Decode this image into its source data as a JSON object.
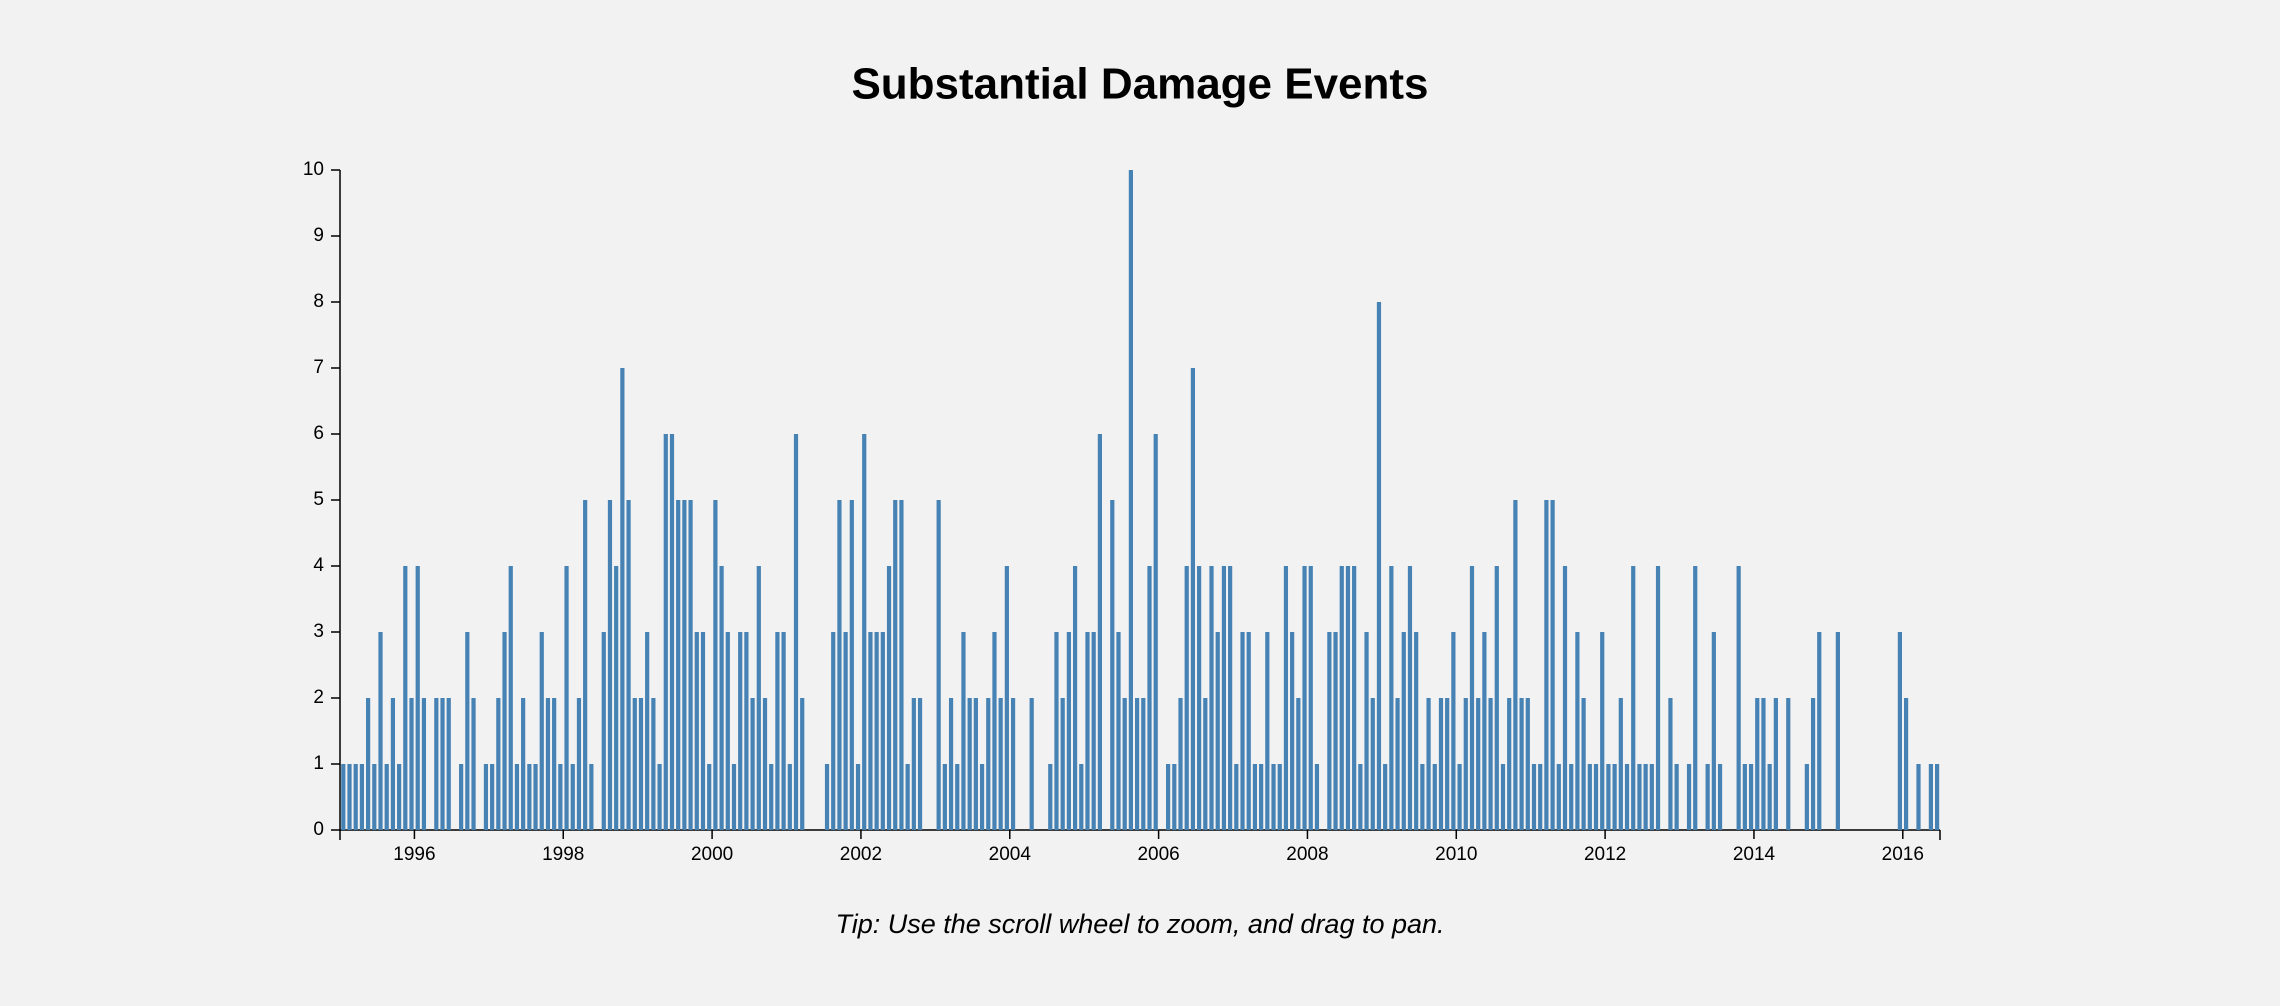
{
  "chart_data": {
    "type": "bar",
    "title": "Substantial Damage Events",
    "note": "Tip: Use the scroll wheel to zoom, and drag to pan.",
    "color": "#4682b4",
    "x": [
      "1995-01",
      "1995-02",
      "1995-03",
      "1995-04",
      "1995-05",
      "1995-06",
      "1995-07",
      "1995-08",
      "1995-09",
      "1995-10",
      "1995-11",
      "1995-12",
      "1996-01",
      "1996-02",
      "1996-03",
      "1996-04",
      "1996-05",
      "1996-06",
      "1996-07",
      "1996-08",
      "1996-09",
      "1996-10",
      "1996-11",
      "1996-12",
      "1997-01",
      "1997-02",
      "1997-03",
      "1997-04",
      "1997-05",
      "1997-06",
      "1997-07",
      "1997-08",
      "1997-09",
      "1997-10",
      "1997-11",
      "1997-12",
      "1998-01",
      "1998-02",
      "1998-03",
      "1998-04",
      "1998-05",
      "1998-06",
      "1998-07",
      "1998-08",
      "1998-09",
      "1998-10",
      "1998-11",
      "1998-12",
      "1999-01",
      "1999-02",
      "1999-03",
      "1999-04",
      "1999-05",
      "1999-06",
      "1999-07",
      "1999-08",
      "1999-09",
      "1999-10",
      "1999-11",
      "1999-12",
      "2000-01",
      "2000-02",
      "2000-03",
      "2000-04",
      "2000-05",
      "2000-06",
      "2000-07",
      "2000-08",
      "2000-09",
      "2000-10",
      "2000-11",
      "2000-12",
      "2001-01",
      "2001-02",
      "2001-03",
      "2001-04",
      "2001-05",
      "2001-06",
      "2001-07",
      "2001-08",
      "2001-09",
      "2001-10",
      "2001-11",
      "2001-12",
      "2002-01",
      "2002-02",
      "2002-03",
      "2002-04",
      "2002-05",
      "2002-06",
      "2002-07",
      "2002-08",
      "2002-09",
      "2002-10",
      "2002-11",
      "2002-12",
      "2003-01",
      "2003-02",
      "2003-03",
      "2003-04",
      "2003-05",
      "2003-06",
      "2003-07",
      "2003-08",
      "2003-09",
      "2003-10",
      "2003-11",
      "2003-12",
      "2004-01",
      "2004-02",
      "2004-03",
      "2004-04",
      "2004-05",
      "2004-06",
      "2004-07",
      "2004-08",
      "2004-09",
      "2004-10",
      "2004-11",
      "2004-12",
      "2005-01",
      "2005-02",
      "2005-03",
      "2005-04",
      "2005-05",
      "2005-06",
      "2005-07",
      "2005-08",
      "2005-09",
      "2005-10",
      "2005-11",
      "2005-12",
      "2006-01",
      "2006-02",
      "2006-03",
      "2006-04",
      "2006-05",
      "2006-06",
      "2006-07",
      "2006-08",
      "2006-09",
      "2006-10",
      "2006-11",
      "2006-12",
      "2007-01",
      "2007-02",
      "2007-03",
      "2007-04",
      "2007-05",
      "2007-06",
      "2007-07",
      "2007-08",
      "2007-09",
      "2007-10",
      "2007-11",
      "2007-12",
      "2008-01",
      "2008-02",
      "2008-03",
      "2008-04",
      "2008-05",
      "2008-06",
      "2008-07",
      "2008-08",
      "2008-09",
      "2008-10",
      "2008-11",
      "2008-12",
      "2009-01",
      "2009-02",
      "2009-03",
      "2009-04",
      "2009-05",
      "2009-06",
      "2009-07",
      "2009-08",
      "2009-09",
      "2009-10",
      "2009-11",
      "2009-12",
      "2010-01",
      "2010-02",
      "2010-03",
      "2010-04",
      "2010-05",
      "2010-06",
      "2010-07",
      "2010-08",
      "2010-09",
      "2010-10",
      "2010-11",
      "2010-12",
      "2011-01",
      "2011-02",
      "2011-03",
      "2011-04",
      "2011-05",
      "2011-06",
      "2011-07",
      "2011-08",
      "2011-09",
      "2011-10",
      "2011-11",
      "2011-12",
      "2012-01",
      "2012-02",
      "2012-03",
      "2012-04",
      "2012-05",
      "2012-06",
      "2012-07",
      "2012-08",
      "2012-09",
      "2012-10",
      "2012-11",
      "2012-12",
      "2013-01",
      "2013-02",
      "2013-03",
      "2013-04",
      "2013-05",
      "2013-06",
      "2013-07",
      "2013-08",
      "2013-09",
      "2013-10",
      "2013-11",
      "2013-12",
      "2014-01",
      "2014-02",
      "2014-03",
      "2014-04",
      "2014-05",
      "2014-06",
      "2014-07",
      "2014-08",
      "2014-09",
      "2014-10",
      "2014-11",
      "2014-12",
      "2015-01",
      "2015-02",
      "2015-03",
      "2015-04",
      "2015-05",
      "2015-06",
      "2015-07",
      "2015-08",
      "2015-09",
      "2015-10",
      "2015-11",
      "2015-12",
      "2016-01",
      "2016-02",
      "2016-03",
      "2016-04",
      "2016-05",
      "2016-06"
    ],
    "values": [
      1,
      1,
      1,
      1,
      2,
      1,
      3,
      1,
      2,
      1,
      4,
      2,
      4,
      2,
      0,
      2,
      2,
      2,
      0,
      1,
      3,
      2,
      0,
      1,
      1,
      2,
      3,
      4,
      1,
      2,
      1,
      1,
      3,
      2,
      2,
      1,
      4,
      1,
      2,
      5,
      1,
      0,
      3,
      5,
      4,
      7,
      5,
      2,
      2,
      3,
      2,
      1,
      6,
      6,
      5,
      5,
      5,
      3,
      3,
      1,
      5,
      4,
      3,
      1,
      3,
      3,
      2,
      4,
      2,
      1,
      3,
      3,
      1,
      6,
      2,
      0,
      0,
      0,
      1,
      3,
      5,
      3,
      5,
      1,
      6,
      3,
      3,
      3,
      4,
      5,
      5,
      1,
      2,
      2,
      0,
      0,
      5,
      1,
      2,
      1,
      3,
      2,
      2,
      1,
      2,
      3,
      2,
      4,
      2,
      0,
      0,
      2,
      0,
      0,
      1,
      3,
      2,
      3,
      4,
      1,
      3,
      3,
      6,
      0,
      5,
      3,
      2,
      10,
      2,
      2,
      4,
      6,
      0,
      1,
      1,
      2,
      4,
      7,
      4,
      2,
      4,
      3,
      4,
      4,
      1,
      3,
      3,
      1,
      1,
      3,
      1,
      1,
      4,
      3,
      2,
      4,
      4,
      1,
      0,
      3,
      3,
      4,
      4,
      4,
      1,
      3,
      2,
      8,
      1,
      4,
      2,
      3,
      4,
      3,
      1,
      2,
      1,
      2,
      2,
      3,
      1,
      2,
      4,
      2,
      3,
      2,
      4,
      1,
      2,
      5,
      2,
      2,
      1,
      1,
      5,
      5,
      1,
      4,
      1,
      3,
      2,
      1,
      1,
      3,
      1,
      1,
      2,
      1,
      4,
      1,
      1,
      1,
      4,
      0,
      2,
      1,
      0,
      1,
      4,
      0,
      1,
      3,
      1,
      0,
      0,
      4,
      1,
      1,
      2,
      2,
      1,
      2,
      0,
      2,
      0,
      0,
      1,
      2,
      3,
      0,
      0,
      3,
      0,
      0,
      0,
      0,
      0,
      0,
      0,
      0,
      0,
      3,
      2,
      0,
      1,
      0,
      1,
      1
    ],
    "xlim": [
      1995,
      2016.5
    ],
    "xticks": [
      1996,
      1998,
      2000,
      2002,
      2004,
      2006,
      2008,
      2010,
      2012,
      2014,
      2016
    ],
    "ylim": [
      0,
      10
    ],
    "yticks": [
      0,
      1,
      2,
      3,
      4,
      5,
      6,
      7,
      8,
      9,
      10
    ]
  }
}
